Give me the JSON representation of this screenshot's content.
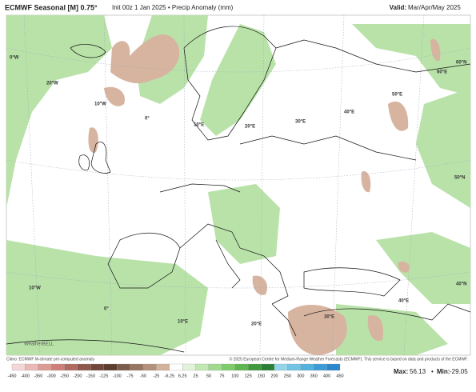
{
  "header": {
    "title": "ECMWF Seasonal [M] 0.75°",
    "subtitle": "Init 00z 1 Jan 2025 • Precip Anomaly (mm)",
    "valid_label": "Valid:",
    "valid_value": "Mar/Apr/May 2025"
  },
  "map": {
    "labels": [
      "0°W",
      "20°W",
      "10°W",
      "0°",
      "10°E",
      "20°E",
      "30°E",
      "40°E",
      "50°E",
      "60°E",
      "60°N",
      "50°N",
      "40°N",
      "10°W",
      "0°",
      "10°E",
      "20°E",
      "30°E",
      "40°E"
    ],
    "logo": "WeatherBELL"
  },
  "footer": {
    "climo": "Climo: ECMWF M-climate pre-computed anomaly",
    "copyright": "© 2025 European Centre for Medium-Range Weather Forecasts (ECMWF). This service is based on data and products of the ECMWF.",
    "legend": {
      "ticks": [
        "-450",
        "-400",
        "-350",
        "-300",
        "-250",
        "-200",
        "-150",
        "-125",
        "-100",
        "-75",
        "-50",
        "-25",
        "-6.25",
        "6.25",
        "25",
        "50",
        "75",
        "100",
        "125",
        "150",
        "200",
        "250",
        "300",
        "350",
        "400",
        "450"
      ],
      "colors": [
        "#f3d6d6",
        "#eab9b6",
        "#dc9c96",
        "#cc8078",
        "#b06a60",
        "#8f564a",
        "#72473a",
        "#5c3e31",
        "#7b5b49",
        "#977661",
        "#b39079",
        "#d2b29b",
        "#ffffff",
        "#e2f3da",
        "#c1e7b3",
        "#9fda8d",
        "#7ecb69",
        "#5eb74e",
        "#3f9a3d",
        "#2c7e37",
        "#93d4e9",
        "#71c4e4",
        "#52b1dd",
        "#3c9cd6",
        "#2b86cc"
      ]
    },
    "stats": {
      "max_label": "Max:",
      "max": "56.13",
      "sep": "•",
      "min_label": "Min:",
      "min": "-29.05"
    }
  }
}
